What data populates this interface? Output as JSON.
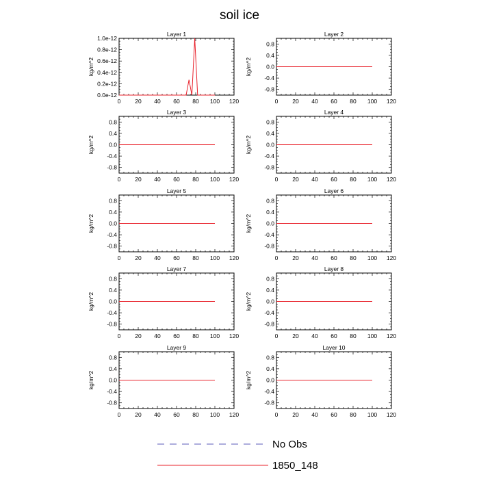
{
  "figure": {
    "title": "soil ice"
  },
  "legend": {
    "entries": [
      {
        "label": "No Obs",
        "style": "dashed",
        "color": "#5a5ab8"
      },
      {
        "label": "1850_148",
        "style": "solid",
        "color": "#e8202a"
      }
    ]
  },
  "chart_data": [
    {
      "type": "line",
      "title": "Layer 1",
      "ylabel": "kg/m^2",
      "xlim": [
        0,
        120
      ],
      "ylim": [
        0,
        1e-12
      ],
      "xticks": [
        0,
        20,
        40,
        60,
        80,
        100,
        120
      ],
      "yticks": [
        0,
        2e-13,
        4e-13,
        6e-13,
        8e-13,
        1e-12
      ],
      "ytick_labels": [
        "0.0e-12",
        "0.2e-12",
        "0.4e-12",
        "0.6e-12",
        "0.8e-12",
        "1.0e-12"
      ],
      "series": [
        {
          "name": "1850_148",
          "color": "#e8202a",
          "x": [
            0,
            70,
            73,
            76,
            79,
            82,
            100
          ],
          "y": [
            0,
            0,
            2.7e-13,
            0,
            1e-12,
            0,
            0
          ]
        }
      ]
    },
    {
      "type": "line",
      "title": "Layer 2",
      "ylabel": "kg/m^2",
      "xlim": [
        0,
        120
      ],
      "ylim": [
        -1,
        1
      ],
      "xticks": [
        0,
        20,
        40,
        60,
        80,
        100,
        120
      ],
      "yticks": [
        -0.8,
        -0.4,
        0,
        0.4,
        0.8
      ],
      "ytick_labels": [
        "-0.8",
        "-0.4",
        "0.0",
        "0.4",
        "0.8"
      ],
      "series": [
        {
          "name": "1850_148",
          "color": "#e8202a",
          "x": [
            0,
            100
          ],
          "y": [
            0,
            0
          ]
        }
      ]
    },
    {
      "type": "line",
      "title": "Layer 3",
      "ylabel": "kg/m^2",
      "xlim": [
        0,
        120
      ],
      "ylim": [
        -1,
        1
      ],
      "xticks": [
        0,
        20,
        40,
        60,
        80,
        100,
        120
      ],
      "yticks": [
        -0.8,
        -0.4,
        0,
        0.4,
        0.8
      ],
      "ytick_labels": [
        "-0.8",
        "-0.4",
        "0.0",
        "0.4",
        "0.8"
      ],
      "series": [
        {
          "name": "1850_148",
          "color": "#e8202a",
          "x": [
            0,
            100
          ],
          "y": [
            0,
            0
          ]
        }
      ]
    },
    {
      "type": "line",
      "title": "Layer 4",
      "ylabel": "kg/m^2",
      "xlim": [
        0,
        120
      ],
      "ylim": [
        -1,
        1
      ],
      "xticks": [
        0,
        20,
        40,
        60,
        80,
        100,
        120
      ],
      "yticks": [
        -0.8,
        -0.4,
        0,
        0.4,
        0.8
      ],
      "ytick_labels": [
        "-0.8",
        "-0.4",
        "0.0",
        "0.4",
        "0.8"
      ],
      "series": [
        {
          "name": "1850_148",
          "color": "#e8202a",
          "x": [
            0,
            100
          ],
          "y": [
            0,
            0
          ]
        }
      ]
    },
    {
      "type": "line",
      "title": "Layer 5",
      "ylabel": "kg/m^2",
      "xlim": [
        0,
        120
      ],
      "ylim": [
        -1,
        1
      ],
      "xticks": [
        0,
        20,
        40,
        60,
        80,
        100,
        120
      ],
      "yticks": [
        -0.8,
        -0.4,
        0,
        0.4,
        0.8
      ],
      "ytick_labels": [
        "-0.8",
        "-0.4",
        "0.0",
        "0.4",
        "0.8"
      ],
      "series": [
        {
          "name": "1850_148",
          "color": "#e8202a",
          "x": [
            0,
            100
          ],
          "y": [
            0,
            0
          ]
        }
      ]
    },
    {
      "type": "line",
      "title": "Layer 6",
      "ylabel": "kg/m^2",
      "xlim": [
        0,
        120
      ],
      "ylim": [
        -1,
        1
      ],
      "xticks": [
        0,
        20,
        40,
        60,
        80,
        100,
        120
      ],
      "yticks": [
        -0.8,
        -0.4,
        0,
        0.4,
        0.8
      ],
      "ytick_labels": [
        "-0.8",
        "-0.4",
        "0.0",
        "0.4",
        "0.8"
      ],
      "series": [
        {
          "name": "1850_148",
          "color": "#e8202a",
          "x": [
            0,
            100
          ],
          "y": [
            0,
            0
          ]
        }
      ]
    },
    {
      "type": "line",
      "title": "Layer 7",
      "ylabel": "kg/m^2",
      "xlim": [
        0,
        120
      ],
      "ylim": [
        -1,
        1
      ],
      "xticks": [
        0,
        20,
        40,
        60,
        80,
        100,
        120
      ],
      "yticks": [
        -0.8,
        -0.4,
        0,
        0.4,
        0.8
      ],
      "ytick_labels": [
        "-0.8",
        "-0.4",
        "0.0",
        "0.4",
        "0.8"
      ],
      "series": [
        {
          "name": "1850_148",
          "color": "#e8202a",
          "x": [
            0,
            100
          ],
          "y": [
            0,
            0
          ]
        }
      ]
    },
    {
      "type": "line",
      "title": "Layer 8",
      "ylabel": "kg/m^2",
      "xlim": [
        0,
        120
      ],
      "ylim": [
        -1,
        1
      ],
      "xticks": [
        0,
        20,
        40,
        60,
        80,
        100,
        120
      ],
      "yticks": [
        -0.8,
        -0.4,
        0,
        0.4,
        0.8
      ],
      "ytick_labels": [
        "-0.8",
        "-0.4",
        "0.0",
        "0.4",
        "0.8"
      ],
      "series": [
        {
          "name": "1850_148",
          "color": "#e8202a",
          "x": [
            0,
            100
          ],
          "y": [
            0,
            0
          ]
        }
      ]
    },
    {
      "type": "line",
      "title": "Layer 9",
      "ylabel": "kg/m^2",
      "xlim": [
        0,
        120
      ],
      "ylim": [
        -1,
        1
      ],
      "xticks": [
        0,
        20,
        40,
        60,
        80,
        100,
        120
      ],
      "yticks": [
        -0.8,
        -0.4,
        0,
        0.4,
        0.8
      ],
      "ytick_labels": [
        "-0.8",
        "-0.4",
        "0.0",
        "0.4",
        "0.8"
      ],
      "series": [
        {
          "name": "1850_148",
          "color": "#e8202a",
          "x": [
            0,
            100
          ],
          "y": [
            0,
            0
          ]
        }
      ]
    },
    {
      "type": "line",
      "title": "Layer 10",
      "ylabel": "kg/m^2",
      "xlim": [
        0,
        120
      ],
      "ylim": [
        -1,
        1
      ],
      "xticks": [
        0,
        20,
        40,
        60,
        80,
        100,
        120
      ],
      "yticks": [
        -0.8,
        -0.4,
        0,
        0.4,
        0.8
      ],
      "ytick_labels": [
        "-0.8",
        "-0.4",
        "0.0",
        "0.4",
        "0.8"
      ],
      "series": [
        {
          "name": "1850_148",
          "color": "#e8202a",
          "x": [
            0,
            100
          ],
          "y": [
            0,
            0
          ]
        }
      ]
    }
  ]
}
